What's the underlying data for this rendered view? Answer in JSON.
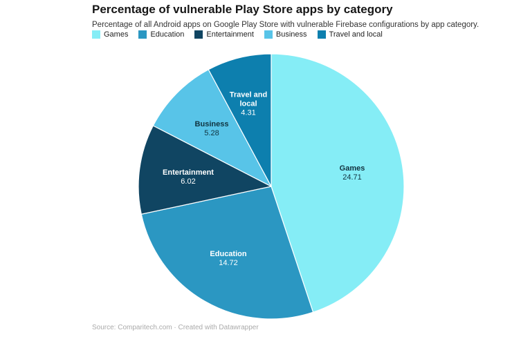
{
  "header": {
    "title": "Percentage of vulnerable Play Store apps by category",
    "subtitle": "Percentage of all Android apps on Google Play Store with vulnerable Firebase configurations by app category."
  },
  "legend": {
    "position": "top",
    "items": [
      {
        "label": "Games",
        "color": "#85edf6"
      },
      {
        "label": "Education",
        "color": "#2b97c2"
      },
      {
        "label": "Entertainment",
        "color": "#104562"
      },
      {
        "label": "Business",
        "color": "#58c4e8"
      },
      {
        "label": "Travel and local",
        "color": "#0d7fae"
      }
    ]
  },
  "chart_data": {
    "type": "pie",
    "title": "Percentage of vulnerable Play Store apps by category",
    "categories": [
      "Games",
      "Education",
      "Entertainment",
      "Business",
      "Travel and local"
    ],
    "values": [
      24.71,
      14.72,
      6.02,
      5.28,
      4.31
    ],
    "colors": [
      "#85edf6",
      "#2b97c2",
      "#104562",
      "#58c4e8",
      "#0d7fae"
    ],
    "legend_position": "top",
    "start_angle_deg": 0,
    "direction": "clockwise",
    "value_labels_shown": true
  },
  "footer": {
    "source": "Source: Comparitech.com · Created with Datawrapper"
  }
}
